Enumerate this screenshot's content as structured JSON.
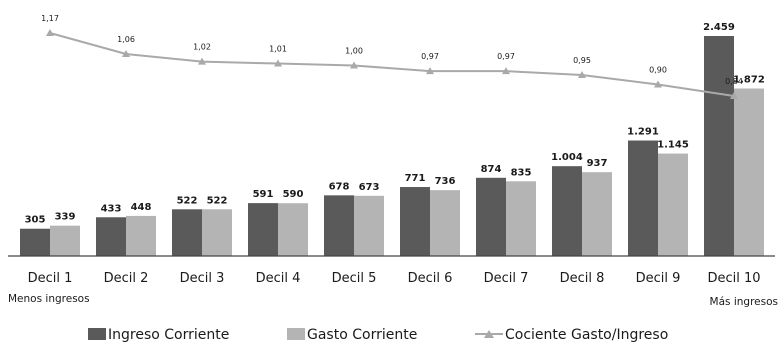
{
  "chart_data": {
    "type": "bar",
    "categories": [
      "Decil 1",
      "Decil 2",
      "Decil 3",
      "Decil 4",
      "Decil 5",
      "Decil 6",
      "Decil 7",
      "Decil 8",
      "Decil 9",
      "Decil 10"
    ],
    "series": [
      {
        "name": "Ingreso Corriente",
        "type": "bar",
        "color": "#5a5a5a",
        "values": [
          305,
          433,
          522,
          591,
          678,
          771,
          874,
          1004,
          1291,
          2459
        ],
        "labels": [
          "305",
          "433",
          "522",
          "591",
          "678",
          "771",
          "874",
          "1.004",
          "1.291",
          "2.459"
        ]
      },
      {
        "name": "Gasto Corriente",
        "type": "bar",
        "color": "#b4b4b4",
        "values": [
          339,
          448,
          522,
          590,
          673,
          736,
          835,
          937,
          1145,
          1872
        ],
        "labels": [
          "339",
          "448",
          "522",
          "590",
          "673",
          "736",
          "835",
          "937",
          "1.145",
          "1.872"
        ]
      },
      {
        "name": "Cociente Gasto/Ingreso",
        "type": "line",
        "color": "#a9a9a9",
        "values": [
          1.17,
          1.06,
          1.02,
          1.01,
          1.0,
          0.97,
          0.97,
          0.95,
          0.9,
          0.84
        ],
        "labels": [
          "1,17",
          "1,06",
          "1,02",
          "1,01",
          "1,00",
          "0,97",
          "0,97",
          "0,95",
          "0,90",
          "0,84"
        ]
      }
    ],
    "sublabels": {
      "first": "Menos ingresos",
      "last": "Más ingresos"
    },
    "legend_position": "bottom"
  }
}
